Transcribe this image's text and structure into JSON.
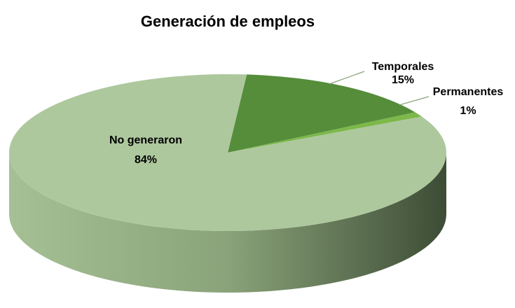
{
  "chart_data": {
    "type": "pie",
    "title": "Generación de empleos",
    "categories": [
      "Temporales",
      "Permanentes",
      "No generaron"
    ],
    "values": [
      15,
      1,
      84
    ],
    "value_labels": [
      "15%",
      "1%",
      "84%"
    ],
    "colors": [
      "#558d3b",
      "#7cb84a",
      "#aec89e"
    ]
  }
}
